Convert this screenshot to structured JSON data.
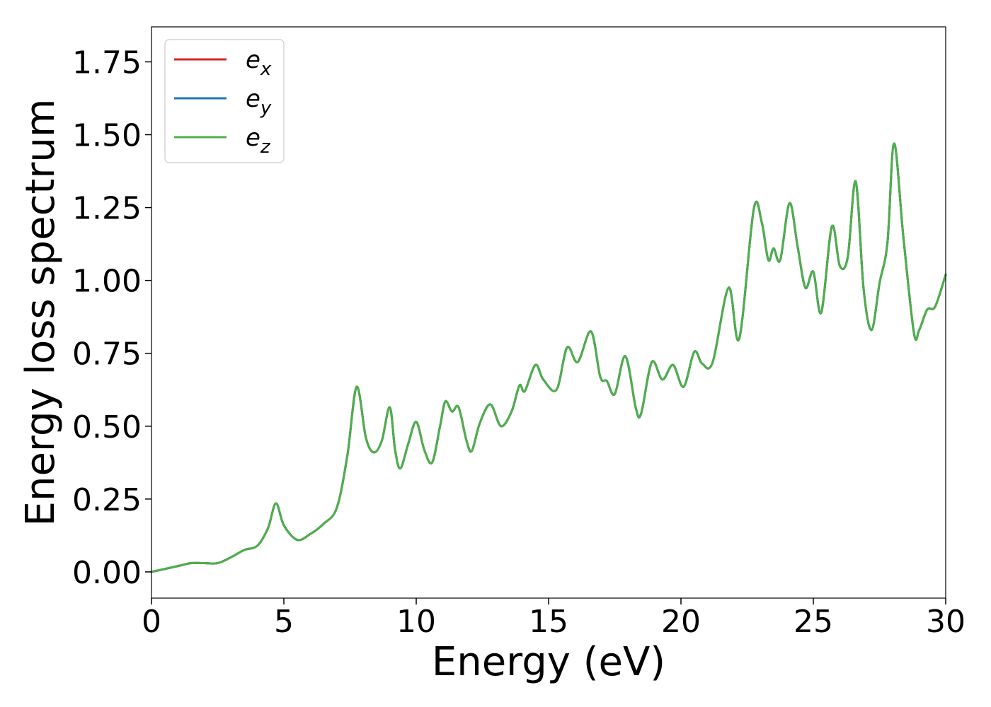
{
  "chart_data": {
    "type": "line",
    "xlabel": "Energy (eV)",
    "ylabel": "Energy loss spectrum",
    "xlim": [
      0,
      30
    ],
    "ylim": [
      -0.09,
      1.87
    ],
    "xticks": [
      0,
      5,
      10,
      15,
      20,
      25,
      30
    ],
    "yticks": [
      0.0,
      0.25,
      0.5,
      0.75,
      1.0,
      1.25,
      1.5,
      1.75
    ],
    "xtick_labels": [
      "0",
      "5",
      "10",
      "15",
      "20",
      "25",
      "30"
    ],
    "ytick_labels": [
      "0.00",
      "0.25",
      "0.50",
      "0.75",
      "1.00",
      "1.25",
      "1.50",
      "1.75"
    ],
    "grid": false,
    "legend": "top-left",
    "series": [
      {
        "name": "e",
        "subscript": "x",
        "color": "#d62728",
        "points": [
          [
            0,
            0.0
          ],
          [
            1,
            0.02
          ],
          [
            1.5,
            0.03
          ],
          [
            2,
            0.03
          ],
          [
            2.5,
            0.03
          ],
          [
            3,
            0.05
          ],
          [
            3.5,
            0.075
          ],
          [
            4,
            0.09
          ],
          [
            4.4,
            0.15
          ],
          [
            4.7,
            0.235
          ],
          [
            5,
            0.16
          ],
          [
            5.5,
            0.11
          ],
          [
            6,
            0.13
          ],
          [
            6.5,
            0.165
          ],
          [
            7,
            0.22
          ],
          [
            7.4,
            0.4
          ],
          [
            7.75,
            0.635
          ],
          [
            8.1,
            0.46
          ],
          [
            8.4,
            0.41
          ],
          [
            8.7,
            0.45
          ],
          [
            9.0,
            0.565
          ],
          [
            9.2,
            0.42
          ],
          [
            9.4,
            0.355
          ],
          [
            9.7,
            0.44
          ],
          [
            10.0,
            0.515
          ],
          [
            10.3,
            0.42
          ],
          [
            10.6,
            0.375
          ],
          [
            10.9,
            0.5
          ],
          [
            11.1,
            0.585
          ],
          [
            11.35,
            0.55
          ],
          [
            11.6,
            0.565
          ],
          [
            11.9,
            0.45
          ],
          [
            12.1,
            0.415
          ],
          [
            12.4,
            0.51
          ],
          [
            12.8,
            0.575
          ],
          [
            13.2,
            0.5
          ],
          [
            13.6,
            0.55
          ],
          [
            13.9,
            0.64
          ],
          [
            14.1,
            0.62
          ],
          [
            14.5,
            0.71
          ],
          [
            14.8,
            0.66
          ],
          [
            15.3,
            0.625
          ],
          [
            15.7,
            0.77
          ],
          [
            16.1,
            0.72
          ],
          [
            16.6,
            0.825
          ],
          [
            16.95,
            0.67
          ],
          [
            17.2,
            0.655
          ],
          [
            17.5,
            0.61
          ],
          [
            17.9,
            0.74
          ],
          [
            18.3,
            0.56
          ],
          [
            18.5,
            0.545
          ],
          [
            18.9,
            0.72
          ],
          [
            19.3,
            0.66
          ],
          [
            19.7,
            0.71
          ],
          [
            20.1,
            0.635
          ],
          [
            20.5,
            0.755
          ],
          [
            20.8,
            0.715
          ],
          [
            21.2,
            0.72
          ],
          [
            21.8,
            0.975
          ],
          [
            22.2,
            0.8
          ],
          [
            22.75,
            1.245
          ],
          [
            23.05,
            1.2
          ],
          [
            23.3,
            1.07
          ],
          [
            23.5,
            1.11
          ],
          [
            23.75,
            1.07
          ],
          [
            24.1,
            1.265
          ],
          [
            24.4,
            1.12
          ],
          [
            24.7,
            0.975
          ],
          [
            25.0,
            1.03
          ],
          [
            25.3,
            0.89
          ],
          [
            25.7,
            1.185
          ],
          [
            26.0,
            1.05
          ],
          [
            26.3,
            1.08
          ],
          [
            26.6,
            1.34
          ],
          [
            26.9,
            0.97
          ],
          [
            27.2,
            0.83
          ],
          [
            27.5,
            0.99
          ],
          [
            27.8,
            1.13
          ],
          [
            28.05,
            1.47
          ],
          [
            28.4,
            1.15
          ],
          [
            28.8,
            0.82
          ],
          [
            29.0,
            0.83
          ],
          [
            29.3,
            0.9
          ],
          [
            29.6,
            0.91
          ],
          [
            30,
            1.02
          ]
        ]
      },
      {
        "name": "e",
        "subscript": "y",
        "color": "#1f77b4",
        "points": [
          [
            0,
            0.0
          ],
          [
            1,
            0.02
          ],
          [
            1.5,
            0.03
          ],
          [
            2,
            0.03
          ],
          [
            2.5,
            0.03
          ],
          [
            3,
            0.05
          ],
          [
            3.5,
            0.075
          ],
          [
            4,
            0.09
          ],
          [
            4.4,
            0.15
          ],
          [
            4.7,
            0.235
          ],
          [
            5,
            0.16
          ],
          [
            5.5,
            0.11
          ],
          [
            6,
            0.13
          ],
          [
            6.5,
            0.165
          ],
          [
            7,
            0.22
          ],
          [
            7.4,
            0.4
          ],
          [
            7.75,
            0.635
          ],
          [
            8.1,
            0.46
          ],
          [
            8.4,
            0.41
          ],
          [
            8.7,
            0.45
          ],
          [
            9.0,
            0.565
          ],
          [
            9.2,
            0.42
          ],
          [
            9.4,
            0.355
          ],
          [
            9.7,
            0.44
          ],
          [
            10.0,
            0.515
          ],
          [
            10.3,
            0.42
          ],
          [
            10.6,
            0.375
          ],
          [
            10.9,
            0.5
          ],
          [
            11.1,
            0.585
          ],
          [
            11.35,
            0.55
          ],
          [
            11.6,
            0.565
          ],
          [
            11.9,
            0.45
          ],
          [
            12.1,
            0.415
          ],
          [
            12.4,
            0.51
          ],
          [
            12.8,
            0.575
          ],
          [
            13.2,
            0.5
          ],
          [
            13.6,
            0.55
          ],
          [
            13.9,
            0.64
          ],
          [
            14.1,
            0.62
          ],
          [
            14.5,
            0.71
          ],
          [
            14.8,
            0.66
          ],
          [
            15.3,
            0.625
          ],
          [
            15.7,
            0.77
          ],
          [
            16.1,
            0.72
          ],
          [
            16.6,
            0.825
          ],
          [
            16.95,
            0.67
          ],
          [
            17.2,
            0.655
          ],
          [
            17.5,
            0.61
          ],
          [
            17.9,
            0.74
          ],
          [
            18.3,
            0.56
          ],
          [
            18.5,
            0.545
          ],
          [
            18.9,
            0.72
          ],
          [
            19.3,
            0.66
          ],
          [
            19.7,
            0.71
          ],
          [
            20.1,
            0.635
          ],
          [
            20.5,
            0.755
          ],
          [
            20.8,
            0.715
          ],
          [
            21.2,
            0.72
          ],
          [
            21.8,
            0.975
          ],
          [
            22.2,
            0.8
          ],
          [
            22.75,
            1.245
          ],
          [
            23.05,
            1.2
          ],
          [
            23.3,
            1.07
          ],
          [
            23.5,
            1.11
          ],
          [
            23.75,
            1.07
          ],
          [
            24.1,
            1.265
          ],
          [
            24.4,
            1.12
          ],
          [
            24.7,
            0.975
          ],
          [
            25.0,
            1.03
          ],
          [
            25.3,
            0.89
          ],
          [
            25.7,
            1.185
          ],
          [
            26.0,
            1.05
          ],
          [
            26.3,
            1.08
          ],
          [
            26.6,
            1.34
          ],
          [
            26.9,
            0.97
          ],
          [
            27.2,
            0.83
          ],
          [
            27.5,
            0.99
          ],
          [
            27.8,
            1.13
          ],
          [
            28.05,
            1.47
          ],
          [
            28.4,
            1.15
          ],
          [
            28.8,
            0.82
          ],
          [
            29.0,
            0.83
          ],
          [
            29.3,
            0.9
          ],
          [
            29.6,
            0.91
          ],
          [
            30,
            1.02
          ]
        ]
      },
      {
        "name": "e",
        "subscript": "z",
        "color": "#4daf4a",
        "points": [
          [
            0,
            0.0
          ],
          [
            1,
            0.02
          ],
          [
            1.5,
            0.03
          ],
          [
            2,
            0.03
          ],
          [
            2.5,
            0.03
          ],
          [
            3,
            0.05
          ],
          [
            3.5,
            0.075
          ],
          [
            4,
            0.09
          ],
          [
            4.4,
            0.15
          ],
          [
            4.7,
            0.235
          ],
          [
            5,
            0.16
          ],
          [
            5.5,
            0.11
          ],
          [
            6,
            0.13
          ],
          [
            6.5,
            0.165
          ],
          [
            7,
            0.22
          ],
          [
            7.4,
            0.4
          ],
          [
            7.75,
            0.635
          ],
          [
            8.1,
            0.46
          ],
          [
            8.4,
            0.41
          ],
          [
            8.7,
            0.45
          ],
          [
            9.0,
            0.565
          ],
          [
            9.2,
            0.42
          ],
          [
            9.4,
            0.355
          ],
          [
            9.7,
            0.44
          ],
          [
            10.0,
            0.515
          ],
          [
            10.3,
            0.42
          ],
          [
            10.6,
            0.375
          ],
          [
            10.9,
            0.5
          ],
          [
            11.1,
            0.585
          ],
          [
            11.35,
            0.55
          ],
          [
            11.6,
            0.565
          ],
          [
            11.9,
            0.45
          ],
          [
            12.1,
            0.415
          ],
          [
            12.4,
            0.51
          ],
          [
            12.8,
            0.575
          ],
          [
            13.2,
            0.5
          ],
          [
            13.6,
            0.55
          ],
          [
            13.9,
            0.64
          ],
          [
            14.1,
            0.62
          ],
          [
            14.5,
            0.71
          ],
          [
            14.8,
            0.66
          ],
          [
            15.3,
            0.625
          ],
          [
            15.7,
            0.77
          ],
          [
            16.1,
            0.72
          ],
          [
            16.6,
            0.825
          ],
          [
            16.95,
            0.67
          ],
          [
            17.2,
            0.655
          ],
          [
            17.5,
            0.61
          ],
          [
            17.9,
            0.74
          ],
          [
            18.3,
            0.56
          ],
          [
            18.5,
            0.545
          ],
          [
            18.9,
            0.72
          ],
          [
            19.3,
            0.66
          ],
          [
            19.7,
            0.71
          ],
          [
            20.1,
            0.635
          ],
          [
            20.5,
            0.755
          ],
          [
            20.8,
            0.715
          ],
          [
            21.2,
            0.72
          ],
          [
            21.8,
            0.975
          ],
          [
            22.2,
            0.8
          ],
          [
            22.75,
            1.245
          ],
          [
            23.05,
            1.2
          ],
          [
            23.3,
            1.07
          ],
          [
            23.5,
            1.11
          ],
          [
            23.75,
            1.07
          ],
          [
            24.1,
            1.265
          ],
          [
            24.4,
            1.12
          ],
          [
            24.7,
            0.975
          ],
          [
            25.0,
            1.03
          ],
          [
            25.3,
            0.89
          ],
          [
            25.7,
            1.185
          ],
          [
            26.0,
            1.05
          ],
          [
            26.3,
            1.08
          ],
          [
            26.6,
            1.34
          ],
          [
            26.9,
            0.97
          ],
          [
            27.2,
            0.83
          ],
          [
            27.5,
            0.99
          ],
          [
            27.8,
            1.13
          ],
          [
            28.05,
            1.47
          ],
          [
            28.4,
            1.15
          ],
          [
            28.8,
            0.82
          ],
          [
            29.0,
            0.83
          ],
          [
            29.3,
            0.9
          ],
          [
            29.6,
            0.91
          ],
          [
            30,
            1.02
          ]
        ]
      }
    ]
  }
}
